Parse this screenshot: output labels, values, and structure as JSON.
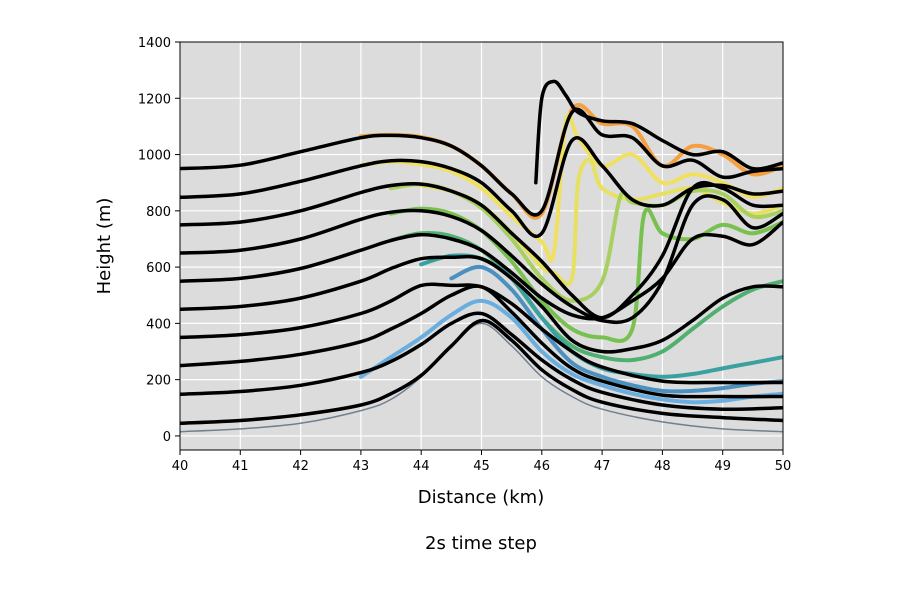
{
  "chart_data": {
    "type": "line",
    "title": "",
    "caption": "2s time step",
    "xlabel": "Distance (km)",
    "ylabel": "Height (m)",
    "xlim": [
      40,
      50
    ],
    "ylim": [
      -50,
      1400
    ],
    "xticks": [
      40,
      41,
      42,
      43,
      44,
      45,
      46,
      47,
      48,
      49,
      50
    ],
    "yticks": [
      0,
      200,
      400,
      600,
      800,
      1000,
      1200,
      1400
    ],
    "grid": true,
    "background": "#dcdcdc",
    "terrain": {
      "color": "#708090",
      "x": [
        40,
        41,
        42,
        43,
        43.5,
        44,
        44.5,
        45,
        45.5,
        46,
        46.5,
        47,
        48,
        49,
        50
      ],
      "y": [
        15,
        25,
        45,
        90,
        130,
        210,
        320,
        400,
        320,
        210,
        140,
        95,
        50,
        25,
        15
      ]
    },
    "series": [
      {
        "color": "#000000",
        "x": [
          40,
          41,
          42,
          43,
          43.5,
          44,
          44.5,
          45,
          45.5,
          46,
          46.5,
          47,
          48,
          49,
          50
        ],
        "y": [
          45,
          55,
          75,
          110,
          150,
          215,
          320,
          410,
          340,
          235,
          165,
          120,
          80,
          65,
          55
        ]
      },
      {
        "color": "#000000",
        "x": [
          40,
          41,
          42,
          43,
          43.5,
          44,
          44.5,
          45,
          45.5,
          46,
          46.5,
          47,
          48,
          49,
          50
        ],
        "y": [
          148,
          158,
          180,
          225,
          265,
          325,
          400,
          435,
          360,
          270,
          200,
          155,
          110,
          95,
          100
        ]
      },
      {
        "color": "#000000",
        "x": [
          40,
          41,
          42,
          43,
          43.5,
          44,
          44.5,
          45,
          45.5,
          46,
          46.5,
          47,
          48,
          49,
          50
        ],
        "y": [
          250,
          265,
          290,
          335,
          380,
          435,
          500,
          530,
          440,
          330,
          240,
          195,
          145,
          140,
          140
        ]
      },
      {
        "color": "#000000",
        "x": [
          40,
          41,
          42,
          43,
          43.5,
          44,
          44.5,
          45,
          45.5,
          46,
          46.5,
          47,
          48,
          49,
          50
        ],
        "y": [
          350,
          360,
          385,
          435,
          480,
          535,
          535,
          530,
          470,
          380,
          300,
          245,
          195,
          190,
          190
        ]
      },
      {
        "color": "#000000",
        "x": [
          40,
          41,
          42,
          43,
          43.5,
          44,
          44.5,
          45,
          45.5,
          46,
          46.5,
          47,
          47.5,
          48,
          48.5,
          49,
          49.5,
          50
        ],
        "y": [
          450,
          460,
          490,
          550,
          595,
          630,
          635,
          630,
          560,
          460,
          340,
          300,
          310,
          340,
          410,
          490,
          530,
          530
        ]
      },
      {
        "color": "#000000",
        "x": [
          40,
          41,
          42,
          43,
          43.5,
          44,
          44.5,
          45,
          45.5,
          46,
          46.5,
          47,
          47.5,
          48,
          48.5,
          49,
          49.5,
          50
        ],
        "y": [
          550,
          560,
          595,
          660,
          695,
          715,
          700,
          660,
          580,
          490,
          430,
          420,
          480,
          560,
          700,
          710,
          680,
          760
        ]
      },
      {
        "color": "#000000",
        "x": [
          40,
          41,
          42,
          43,
          43.5,
          44,
          44.5,
          45,
          45.5,
          46,
          46.5,
          47,
          47.5,
          48,
          48.5,
          49,
          49.5,
          50
        ],
        "y": [
          650,
          660,
          700,
          770,
          795,
          800,
          780,
          730,
          640,
          540,
          460,
          410,
          420,
          550,
          820,
          840,
          740,
          790
        ]
      },
      {
        "color": "#000000",
        "x": [
          40,
          41,
          42,
          43,
          43.5,
          44,
          44.5,
          45,
          45.5,
          46,
          46.5,
          47,
          47.5,
          48,
          48.5,
          49,
          49.5,
          50
        ],
        "y": [
          750,
          760,
          800,
          865,
          890,
          895,
          870,
          820,
          720,
          620,
          500,
          420,
          500,
          640,
          880,
          880,
          820,
          820
        ]
      },
      {
        "color": "#000000",
        "x": [
          40,
          41,
          42,
          43,
          43.5,
          44,
          44.5,
          45,
          45.5,
          46,
          46.5,
          47,
          47.5,
          48,
          48.5,
          49,
          49.5,
          50
        ],
        "y": [
          848,
          860,
          905,
          960,
          978,
          975,
          950,
          900,
          800,
          720,
          1050,
          960,
          840,
          820,
          880,
          890,
          860,
          870
        ]
      },
      {
        "color": "#000000",
        "x": [
          40,
          41,
          42,
          43,
          43.5,
          44,
          44.5,
          45,
          45.5,
          46,
          46.5,
          47,
          47.5,
          48,
          48.5,
          49,
          49.5,
          50
        ],
        "y": [
          950,
          962,
          1010,
          1060,
          1068,
          1060,
          1030,
          960,
          860,
          800,
          1150,
          1070,
          1060,
          960,
          980,
          920,
          940,
          950
        ]
      },
      {
        "color": "#000000",
        "x": [
          45.9,
          46,
          46.2,
          46.4,
          46.6,
          47,
          47.5,
          48,
          48.5,
          49,
          49.5,
          50
        ],
        "y": [
          900,
          1200,
          1260,
          1210,
          1150,
          1120,
          1110,
          1050,
          1000,
          1010,
          950,
          970
        ]
      },
      {
        "color": "#f4a040",
        "x": [
          43,
          43.5,
          44,
          44.5,
          45,
          45.5,
          46,
          46.5,
          47,
          47.5,
          48,
          48.5,
          49,
          49.5,
          50
        ],
        "y": [
          1065,
          1070,
          1062,
          1030,
          960,
          860,
          790,
          1160,
          1110,
          1100,
          960,
          1030,
          1000,
          930,
          960
        ]
      },
      {
        "color": "#f0e060",
        "x": [
          43,
          43.5,
          44,
          44.5,
          45,
          45.5,
          46,
          46.2,
          46.4,
          46.6,
          47,
          47.5,
          48,
          48.5,
          49,
          49.5,
          50
        ],
        "y": [
          962,
          975,
          965,
          940,
          880,
          780,
          690,
          650,
          1120,
          1060,
          960,
          1000,
          900,
          930,
          900,
          850,
          880
        ]
      },
      {
        "color": "#e8e060",
        "x": [
          44,
          44.5,
          45,
          45.5,
          46,
          46.2,
          46.5,
          46.6,
          46.8,
          47,
          47.5,
          48,
          48.5,
          49,
          49.5,
          50
        ],
        "y": [
          890,
          870,
          820,
          720,
          600,
          580,
          560,
          900,
          980,
          880,
          840,
          860,
          880,
          830,
          790,
          820
        ]
      },
      {
        "color": "#a8d060",
        "x": [
          43.5,
          44,
          44.5,
          45,
          45.5,
          46,
          46.5,
          47,
          47.3,
          47.5,
          48,
          48.5,
          49,
          49.5,
          50
        ],
        "y": [
          880,
          895,
          870,
          810,
          700,
          560,
          480,
          550,
          850,
          830,
          820,
          870,
          860,
          780,
          800
        ]
      },
      {
        "color": "#78c050",
        "x": [
          43.5,
          44,
          44.5,
          45,
          45.5,
          46,
          46.5,
          47,
          47.5,
          47.7,
          48,
          48.5,
          49,
          49.5,
          50
        ],
        "y": [
          790,
          808,
          790,
          730,
          620,
          480,
          380,
          350,
          380,
          790,
          720,
          700,
          750,
          720,
          760
        ]
      },
      {
        "color": "#50b070",
        "x": [
          43.5,
          44,
          44.5,
          45,
          45.5,
          46,
          46.5,
          47,
          47.5,
          48,
          48.5,
          49,
          49.5,
          50
        ],
        "y": [
          695,
          720,
          710,
          660,
          560,
          420,
          320,
          280,
          270,
          300,
          380,
          460,
          520,
          550
        ]
      },
      {
        "color": "#3aa0a0",
        "x": [
          44,
          44.5,
          45,
          45.5,
          46,
          46.5,
          47,
          47.5,
          48,
          48.5,
          49,
          49.5,
          50
        ],
        "y": [
          610,
          640,
          630,
          560,
          420,
          300,
          240,
          220,
          210,
          220,
          240,
          260,
          280
        ]
      },
      {
        "color": "#4a90c0",
        "x": [
          44.5,
          45,
          45.5,
          46,
          46.5,
          47,
          47.5,
          48,
          48.5,
          49,
          49.5,
          50
        ],
        "y": [
          560,
          600,
          520,
          380,
          260,
          210,
          180,
          160,
          160,
          170,
          185,
          195
        ]
      },
      {
        "color": "#6aaee0",
        "x": [
          43,
          43.5,
          44,
          44.5,
          45,
          45.5,
          46,
          46.5,
          47,
          47.5,
          48,
          48.5,
          49,
          49.5,
          50
        ],
        "y": [
          210,
          280,
          350,
          430,
          480,
          420,
          300,
          220,
          180,
          150,
          130,
          120,
          125,
          140,
          150
        ]
      }
    ]
  }
}
